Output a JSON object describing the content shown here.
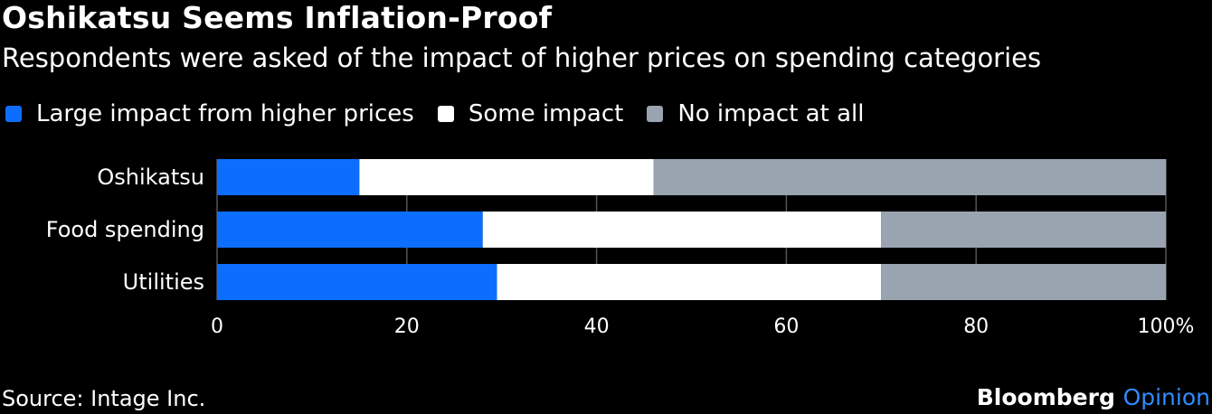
{
  "header": {
    "title": "Oshikatsu Seems Inflation-Proof",
    "subtitle": "Respondents were asked of the impact of higher prices on spending categories"
  },
  "footer": {
    "source": "Source: Intage Inc.",
    "brand_main": "Bloomberg",
    "brand_accent": "Opinion"
  },
  "colors": {
    "large": "#0d6efd",
    "some": "#ffffff",
    "none": "#9aa4b1",
    "grid": "#555555",
    "brand_accent": "#2f8cff"
  },
  "chart_data": {
    "type": "bar",
    "orientation": "horizontal",
    "stacked": true,
    "categories": [
      "Oshikatsu",
      "Food spending",
      "Utilities"
    ],
    "series": [
      {
        "name": "Large impact from higher prices",
        "values": [
          15,
          28,
          29.5
        ]
      },
      {
        "name": "Some impact",
        "values": [
          31,
          42,
          40.5
        ]
      },
      {
        "name": "No impact at all",
        "values": [
          54,
          30,
          30
        ]
      }
    ],
    "xlim": [
      0,
      100
    ],
    "xticks": [
      "0",
      "20",
      "40",
      "60",
      "80",
      "100%"
    ],
    "grid": "vertical",
    "legend_position": "top"
  }
}
